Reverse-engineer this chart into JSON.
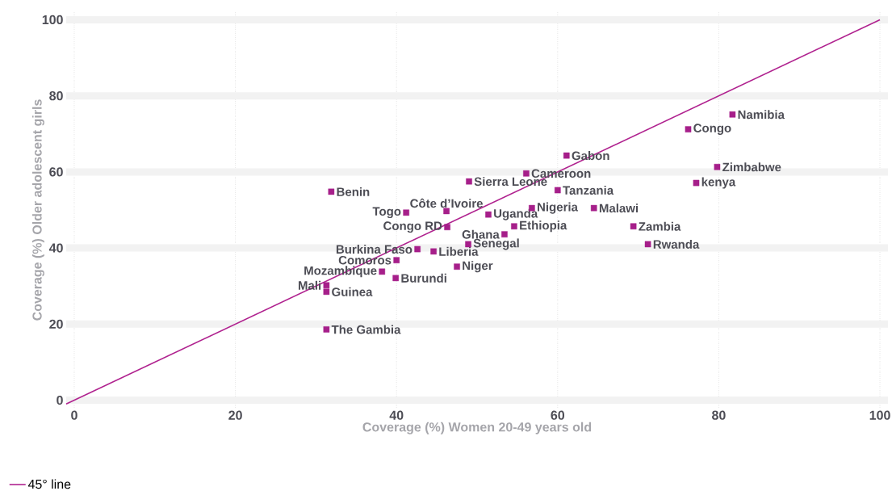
{
  "chart_data": {
    "type": "scatter",
    "xlabel": "Coverage (%) Women 20-49 years old",
    "ylabel": "Coverage (%) Older adolescent girls",
    "xlim": [
      -1,
      101
    ],
    "ylim": [
      -2,
      102
    ],
    "xticks": [
      0,
      20,
      40,
      60,
      80,
      100
    ],
    "yticks": [
      0,
      20,
      40,
      60,
      80,
      100
    ],
    "grid": true,
    "legend": "bottom left",
    "line_style": "solid",
    "series": [
      {
        "marker": "square",
        "color": "#a61f8a",
        "x": [
          31.9,
          41.2,
          46.2,
          46.3,
          49.0,
          56.1,
          51.4,
          56.8,
          54.6,
          53.4,
          48.9,
          42.6,
          44.6,
          40.0,
          47.5,
          38.2,
          39.9,
          31.3,
          31.3,
          31.3,
          61.1,
          60.0,
          64.5,
          69.4,
          71.2,
          77.2,
          79.8,
          76.2,
          81.7
        ],
        "values": [
          54.8,
          49.3,
          49.7,
          45.5,
          57.5,
          59.6,
          48.8,
          50.5,
          45.7,
          43.6,
          41.0,
          39.7,
          39.1,
          36.8,
          35.1,
          33.8,
          32.1,
          30.2,
          28.5,
          18.6,
          64.3,
          55.2,
          50.5,
          45.7,
          41.0,
          57.1,
          61.3,
          71.2,
          75.1
        ]
      },
      {
        "type": "line",
        "name": "45° line",
        "color": "#b0228f",
        "x": [
          -1,
          100
        ],
        "values": [
          -1,
          100
        ]
      }
    ],
    "annotations": [
      {
        "text": "Benin",
        "x": 31.9,
        "y": 54.8
      },
      {
        "text": "Togo",
        "x": 41.2,
        "y": 49.3
      },
      {
        "text": "Côte d’Ivoire",
        "x": 46.2,
        "y": 49.7
      },
      {
        "text": "Congo RD",
        "x": 46.3,
        "y": 45.5
      },
      {
        "text": "Sierra Leone",
        "x": 49.0,
        "y": 57.5
      },
      {
        "text": "Cameroon",
        "x": 56.1,
        "y": 59.6
      },
      {
        "text": "Uganda",
        "x": 51.4,
        "y": 48.8
      },
      {
        "text": "Nigeria",
        "x": 56.8,
        "y": 50.5
      },
      {
        "text": "Ethiopia",
        "x": 54.6,
        "y": 45.7
      },
      {
        "text": "Ghana",
        "x": 53.4,
        "y": 43.6
      },
      {
        "text": "Senegal",
        "x": 48.9,
        "y": 41.0
      },
      {
        "text": "Burkina Faso",
        "x": 42.6,
        "y": 39.7
      },
      {
        "text": "Liberia",
        "x": 44.6,
        "y": 39.1
      },
      {
        "text": "Comoros",
        "x": 40.0,
        "y": 36.8
      },
      {
        "text": "Niger",
        "x": 47.5,
        "y": 35.1
      },
      {
        "text": "Mozambique",
        "x": 38.2,
        "y": 33.8
      },
      {
        "text": "Burundi",
        "x": 39.9,
        "y": 32.1
      },
      {
        "text": "Mali",
        "x": 31.3,
        "y": 30.2
      },
      {
        "text": "Guinea",
        "x": 31.3,
        "y": 28.5
      },
      {
        "text": "The Gambia",
        "x": 31.3,
        "y": 18.6
      },
      {
        "text": "Gabon",
        "x": 61.1,
        "y": 64.3
      },
      {
        "text": "Tanzania",
        "x": 60.0,
        "y": 55.2
      },
      {
        "text": "Malawi",
        "x": 64.5,
        "y": 50.5
      },
      {
        "text": "Zambia",
        "x": 69.4,
        "y": 45.7
      },
      {
        "text": "Rwanda",
        "x": 71.2,
        "y": 41.0
      },
      {
        "text": "kenya",
        "x": 77.2,
        "y": 57.1
      },
      {
        "text": "Zimbabwe",
        "x": 79.8,
        "y": 61.3
      },
      {
        "text": "Congo",
        "x": 76.2,
        "y": 71.2
      },
      {
        "text": "Namibia",
        "x": 81.7,
        "y": 75.1
      }
    ]
  }
}
